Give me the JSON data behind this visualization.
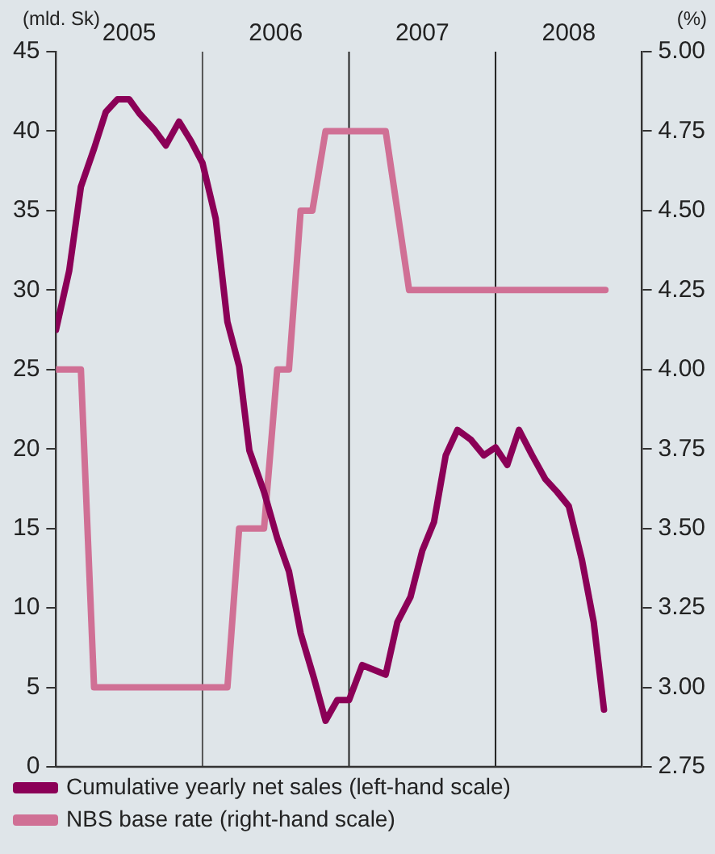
{
  "chart_data": {
    "type": "line",
    "ylabel": "(mld. Sk)",
    "y2label": "(%)",
    "xlim": [
      2005,
      2009
    ],
    "xticks": [
      {
        "value": 2005.5,
        "label": "2005"
      },
      {
        "value": 2006.5,
        "label": "2006"
      },
      {
        "value": 2007.5,
        "label": "2007"
      },
      {
        "value": 2008.5,
        "label": "2008"
      }
    ],
    "ylim": [
      0,
      45
    ],
    "yticks": [
      0,
      5,
      10,
      15,
      20,
      25,
      30,
      35,
      40,
      45
    ],
    "y2lim": [
      2.75,
      5
    ],
    "y2ticks": [
      {
        "value": 2.75,
        "label": "2.75"
      },
      {
        "value": 3,
        "label": "3.00"
      },
      {
        "value": 3.25,
        "label": "3.25"
      },
      {
        "value": 3.5,
        "label": "3.50"
      },
      {
        "value": 3.75,
        "label": "3.75"
      },
      {
        "value": 4,
        "label": "4.00"
      },
      {
        "value": 4.25,
        "label": "4.25"
      },
      {
        "value": 4.5,
        "label": "4.50"
      },
      {
        "value": 4.75,
        "label": "4.75"
      },
      {
        "value": 5,
        "label": "5.00"
      }
    ],
    "series": [
      {
        "name": "Cumulative yearly net sales (left-hand scale)",
        "color": "#8b0057",
        "axis": "y",
        "x": [
          2005.0,
          2005.09,
          2005.17,
          2005.26,
          2005.34,
          2005.42,
          2005.5,
          2005.57,
          2005.67,
          2005.75,
          2005.84,
          2005.92,
          2006.0,
          2006.09,
          2006.17,
          2006.25,
          2006.32,
          2006.42,
          2006.51,
          2006.59,
          2006.67,
          2006.76,
          2006.84,
          2006.92,
          2007.0,
          2007.09,
          2007.25,
          2007.33,
          2007.42,
          2007.5,
          2007.58,
          2007.66,
          2007.74,
          2007.83,
          2007.92,
          2008.0,
          2008.08,
          2008.16,
          2008.25,
          2008.34,
          2008.42,
          2008.5,
          2008.59,
          2008.67,
          2008.74
        ],
        "values": [
          27.5,
          31.2,
          36.5,
          38.9,
          41.2,
          42.0,
          42.0,
          41.1,
          40.1,
          39.1,
          40.6,
          39.4,
          38.0,
          34.5,
          28.0,
          25.2,
          19.9,
          17.3,
          14.4,
          12.3,
          8.4,
          5.6,
          2.9,
          4.2,
          4.2,
          6.4,
          5.8,
          9.1,
          10.7,
          13.6,
          15.4,
          19.6,
          21.2,
          20.6,
          19.6,
          20.1,
          19.0,
          21.2,
          19.6,
          18.1,
          17.3,
          16.4,
          13.0,
          9.1,
          3.6
        ]
      },
      {
        "name": "NBS base rate (right-hand scale)",
        "color": "#d07095",
        "axis": "y2",
        "x": [
          2005.0,
          2005.17,
          2005.26,
          2006.17,
          2006.25,
          2006.42,
          2006.51,
          2006.59,
          2006.67,
          2006.75,
          2006.84,
          2007.25,
          2007.41,
          2008.75
        ],
        "values": [
          4.0,
          4.0,
          3.0,
          3.0,
          3.5,
          3.5,
          4.0,
          4.0,
          4.5,
          4.5,
          4.75,
          4.75,
          4.25,
          4.25
        ]
      }
    ],
    "ref_lines": [
      {
        "axis": "x",
        "value": 2006,
        "color": "#555555"
      },
      {
        "axis": "x",
        "value": 2007,
        "color": "#222222"
      },
      {
        "axis": "x",
        "value": 2008,
        "color": "#222222"
      }
    ],
    "legend": "bottom",
    "grid": false,
    "marker": "none",
    "line_style": "solid"
  }
}
